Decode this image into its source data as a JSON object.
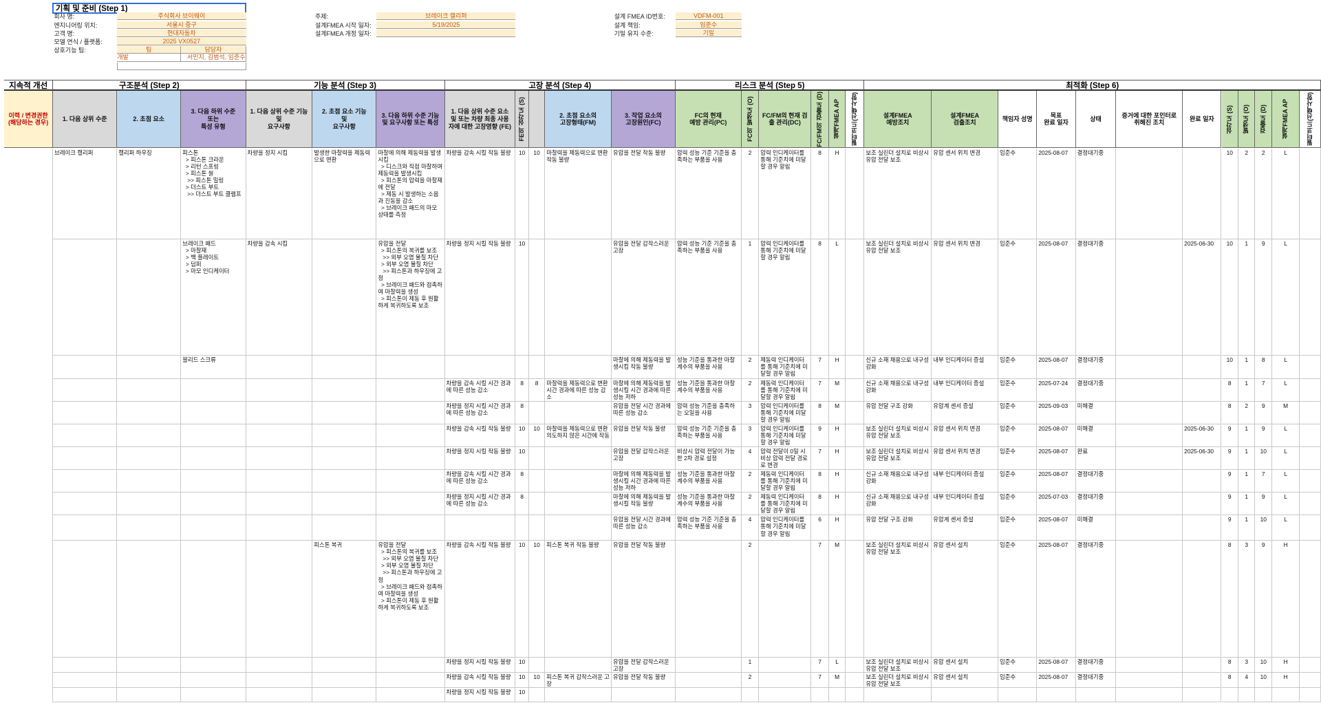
{
  "step1": {
    "title": "기획 및 준비 (Step 1)",
    "left": [
      {
        "label": "회사 명:",
        "value": "주식회사 브이웨이"
      },
      {
        "label": "엔지니어링 위치:",
        "value": "서울시 중구"
      },
      {
        "label": "고객 명:",
        "value": "현대자동차"
      },
      {
        "label": "모델 연식 / 플랫폼:",
        "value": "2025 VX0527"
      }
    ],
    "team": {
      "label": "상호기능 팀:",
      "headers": [
        "팀",
        "담당자"
      ],
      "rows": [
        [
          "개발",
          "서민지, 김범석, 임준수"
        ]
      ]
    },
    "middle": [
      {
        "label": "주제:",
        "value": "브레이크 캘리퍼"
      },
      {
        "label": "설계FMEA 시작 일자:",
        "value": "5/19/2025"
      },
      {
        "label": "설계FMEA 개정 일자:",
        "value": null
      }
    ],
    "right": [
      {
        "label": "설계 FMEA ID번호:",
        "value": "VDFM-001"
      },
      {
        "label": "설계 책임:",
        "value": "임준수"
      },
      {
        "label": "기밀 유지 수준:",
        "value": "기밀"
      }
    ]
  },
  "table": {
    "groups": [
      "지속적 개선",
      "구조분석 (Step 2)",
      "기능 분석 (Step 3)",
      "고장 분석 (Step 4)",
      "리스크 분석 (Step 5)",
      "최적화 (Step 6)"
    ],
    "headers": [
      "이력 / 변경권한\n(해당하는 경우)",
      "1. 다음 상위 수준",
      "2. 초점 요소",
      "3. 다음 하위 수준\n또는\n특성 유형",
      "1. 다음 상위 수준 기능 및\n요구사항",
      "2. 초점 요소 기능\n및\n요구사항",
      "3. 다음 하위 수준 기능\n및 요구사항 또는 특성",
      "1. 다음 상위 수준 요소\n및 또는 차량 최종 사용\n자에 대한 고장영향 (FE)",
      "FE의 심각도 (S)",
      null,
      "2. 초점 요소의\n고장형태(FM)",
      "3. 작업 요소의\n고장원인(FC)",
      "FC의 현재\n예방 관리(PC)",
      "FC의 발생도 (O)",
      "FC/FM의 현재 검\n출 관리(DC)",
      "FC/FM의 검출도 (D)",
      "설계FMEA AP",
      "필터코드(선택사항)",
      "설계FMEA\n예방조치",
      "설계FMEA\n검출조치",
      "책임자 성명",
      "목표\n완료 일자",
      "상태",
      "증거에 대한 포인터로\n취해진 조치",
      "완료 일자",
      "심각도 (S)",
      "발생도 (O)",
      "검출도 (D)",
      "설계FMEA AP",
      "필터코드(선택사항)"
    ],
    "rows": [
      [
        null,
        "브레이크 캘리퍼",
        "캘리퍼 하우징",
        "피스톤\n  > 피스톤 크라운\n  > 리턴 스프링\n  > 피스톤 씰\n   >> 피스톤 밀링\n  > 더스트 부트\n   >> 더스트 부트 클램프",
        "차량을 정지 시킴",
        "발생한 마찰력을 제동력으로 변환",
        "마찰에 의해 제동력을 발생시킴\n  > 디스크와 직접 마찰하여 제동력을 발생시킴\n  > 피스톤의 압력을 마찰재에 전달\n  > 제동 시 발생하는 소음과 진동을 감소\n  > 브레이크 패드의 마모 상태를 측정",
        "차량을 감속 시킬 작동 불량",
        10,
        10,
        "마찰력을 제동력으로 변환 작동 불량",
        "유압을 전달 작동 불량",
        "압력 성능 기준 기준을 충족하는 부품을 사용",
        2,
        "압력 인디케이터를 통해 기준치에 미달할 경우 알림",
        8,
        "H",
        null,
        "보조 실린더 설치로 비상시 유압 전달 보조",
        "유압 센서 위치 변경",
        "임준수",
        "2025-08-07",
        "결정대기중",
        null,
        null,
        10,
        2,
        2,
        "L",
        null
      ],
      [
        null,
        null,
        null,
        "브레이크 패드\n  > 마찰재\n  > 백 플레이트\n  > 덤퍼\n  > 마모 인디케이터",
        "차량을 감속 시킴",
        null,
        "유압을 전달\n  > 피스톤의 복귀를 보조\n   >> 외부 오염 물질 차단\n  > 외부 오염 물질 차단\n   >> 피스톤과 하우징에 고정\n  > 브레이크 패드와 접촉하여 마찰력을 생성\n  > 피스톤이 제동 후 원활하게 복귀하도록 보조",
        "차량을 정지 시킬 작동 불량",
        10,
        null,
        null,
        "유압을 전달 갑작스러운 고장",
        "압력 성능 기준 기준을 충족하는 부품을 사용",
        1,
        "압력 인디케이터를 통해 기준치에 미달할 경우 알림",
        8,
        "L",
        null,
        "보조 실린더 설치로 비상시 유압 전달 보조",
        "유압 센서 위치 변경",
        "임준수",
        "2025-08-07",
        "결정대기중",
        null,
        "2025-06-30",
        10,
        1,
        9,
        "L",
        null
      ],
      [
        null,
        null,
        null,
        "블리드 스크류",
        null,
        null,
        null,
        null,
        null,
        null,
        null,
        "마찰에 의해 제동력을 발생시킴 작동 불량",
        "성능 기준을 통과한 마찰계수의 부품을 사용",
        2,
        "제동력 인디케이터를 통해 기준치에 미달할 경우 알림",
        7,
        "H",
        null,
        "신규 소재 채용으로 내구성 강화",
        "내부 인디케이터 증설",
        "임준수",
        "2025-08-07",
        "결정대기중",
        null,
        null,
        10,
        1,
        8,
        "L",
        null
      ],
      [
        null,
        null,
        null,
        null,
        null,
        null,
        null,
        "차량을 감속 시킬 시간 경과에 따른 성능 감소",
        8,
        8,
        "마찰력을 제동력으로 변환 시간 경과에 따른 성능 감소",
        "마찰에 의해 제동력을 발생시킬 시간 경과에 따른 성능 저하",
        "성능 기준을 통과한 마찰계수의 부품을 사용",
        2,
        "제동력 인디케이터를 통해 기준치에 미달할 경우 알림",
        7,
        "M",
        null,
        "신규 소재 채용으로 내구성 강화",
        "내부 인디케이터 증설",
        "임준수",
        "2025-07-24",
        "결정대기중",
        null,
        null,
        8,
        1,
        7,
        "L",
        null
      ],
      [
        null,
        null,
        null,
        null,
        null,
        null,
        null,
        "차량을 정지 시킬 시간 경과에 따른 성능 감소",
        8,
        null,
        null,
        "유압을 전달 시간 경과에 따른 성능 감소",
        "압력 성능 기준을 충족하는 오일을 사용",
        3,
        "압력 인디케이터를 통해 기준치에 미달할 경우 알림",
        8,
        "M",
        null,
        "유압 전달 구조 강화",
        "유압계 센서 증설",
        "임준수",
        "2025-09-03",
        "미해결",
        null,
        null,
        8,
        2,
        9,
        "M",
        null
      ],
      [
        null,
        null,
        null,
        null,
        null,
        null,
        null,
        "차량을 감속 시킬 작동 불량",
        10,
        10,
        "마찰력을 제동력으로 변환 의도하지 않은 시간에 작동",
        "유압을 전달 작동 불량",
        "압력 성능 기준 기준을 충족하는 부품을 사용",
        3,
        "압력 인디케이터를 통해 기준치에 미달할 경우 알림",
        9,
        "H",
        null,
        "보조 실린더 설치로 비상시 유압 전달 보조",
        "유압 센서 위치 변경",
        "임준수",
        "2025-08-07",
        "미해결",
        null,
        "2025-06-30",
        9,
        1,
        9,
        "L",
        null
      ],
      [
        null,
        null,
        null,
        null,
        null,
        null,
        null,
        "차량을 정지 시킬 작동 불량",
        10,
        null,
        null,
        "유압을 전달 갑작스러운 고장",
        "비상시 압력 전달이 가능한 2차 경로 설정",
        4,
        "압력 전달이 0일 시 비상 압력 전달 경로로 변경",
        7,
        "H",
        null,
        "보조 실린더 설치로 비상시 유압 전달 보조",
        "유압 센서 위치 변경",
        "임준수",
        "2025-08-07",
        "완료",
        null,
        "2025-06-30",
        9,
        1,
        10,
        "L",
        null
      ],
      [
        null,
        null,
        null,
        null,
        null,
        null,
        null,
        "차량을 감속 시킬 시간 경과에 따른 성능 감소",
        8,
        null,
        null,
        "마찰에 의해 제동력을 발생시킬 시간 경과에 따른 성능 저하",
        "성능 기준을 통과한 마찰계수의 부품을 사용",
        2,
        "제동력 인디케이터를 통해 기준치에 미달할 경우 알림",
        8,
        "H",
        null,
        "신규 소재 채용으로 내구성 강화",
        "내부 인디케이터 증설",
        "임준수",
        "2025-08-07",
        "결정대기중",
        null,
        null,
        9,
        1,
        7,
        "L",
        null
      ],
      [
        null,
        null,
        null,
        null,
        null,
        null,
        null,
        "차량을 정지 시킬 시간 경과에 따른 성능 감소",
        8,
        null,
        null,
        "마찰에 의해 제동력을 발생시킬 작동 불량",
        "성능 기준을 통과한 마찰계수의 부품을 사용",
        2,
        "제동력 인디케이터를 통해 기준치에 미달할 경우 알림",
        8,
        "H",
        null,
        "신규 소재 채용으로 내구성 강화",
        "내부 인디케이터 증설",
        "임준수",
        "2025-07-03",
        "결정대기중",
        null,
        null,
        9,
        1,
        9,
        "L",
        null
      ],
      [
        null,
        null,
        null,
        null,
        null,
        null,
        null,
        null,
        null,
        null,
        null,
        "유압을 전달 시간 경과에 따른 성능 감소",
        "압력 성능 기준 기준을 충족하는 부품을 사용",
        4,
        "압력 인디케이터를 통해 기준치에 미달할 경우 알림",
        6,
        "H",
        null,
        "유압 전달 구조 강화",
        "유압계 센서 증설",
        "임준수",
        "2025-08-07",
        "미해결",
        null,
        null,
        9,
        1,
        10,
        "L",
        null
      ],
      [
        null,
        null,
        null,
        null,
        null,
        "피스톤 복귀",
        "유압을 전달\n  > 피스톤의 복귀를 보조\n   >> 외부 오염 물질 차단\n  > 외부 오염 물질 차단\n   >> 피스톤과 하우징에 고정\n  > 브레이크 패드와 접촉하여 마찰력을 생성\n  > 피스톤이 제동 후 원활하게 복귀하도록 보조",
        "차량을 감속 시킬 작동 불량",
        10,
        10,
        "피스톤 복귀 작동 불량",
        "유압을 전달 작동 불량",
        null,
        2,
        null,
        7,
        "M",
        null,
        "보조 실린더 설치로 비상시 유압 전달 보조",
        "유압 센서 설치",
        "임준수",
        "2025-08-07",
        "결정대기중",
        null,
        null,
        8,
        3,
        9,
        "H",
        null
      ],
      [
        null,
        null,
        null,
        null,
        null,
        null,
        null,
        "차량을 정지 시킬 작동 불량",
        10,
        null,
        null,
        "유압을 전달 갑작스러운 고장",
        null,
        1,
        null,
        7,
        "L",
        null,
        "보조 실린더 설치로 비상시 유압 전달 보조",
        "유압 센서 설치",
        "임준수",
        "2025-08-07",
        "결정대기중",
        null,
        null,
        8,
        3,
        10,
        "H",
        null
      ],
      [
        null,
        null,
        null,
        null,
        null,
        null,
        null,
        "차량을 감속 시킬 작동 불량",
        10,
        10,
        "피스톤 복귀 갑작스러운 고장",
        "유압을 전달 작동 불량",
        null,
        2,
        null,
        7,
        "M",
        null,
        "보조 실린더 설치로 비상시 유압 전달 보조",
        "유압 센서 설치",
        "임준수",
        "2025-08-07",
        "결정대기중",
        null,
        null,
        8,
        4,
        10,
        "H",
        null
      ],
      [
        null,
        null,
        null,
        null,
        null,
        null,
        null,
        "차량을 정지 시킬 작동 불량",
        10,
        null,
        null,
        null,
        null,
        null,
        null,
        null,
        null,
        null,
        null,
        null,
        null,
        null,
        null,
        null,
        null,
        null,
        null,
        null,
        null,
        null
      ]
    ]
  }
}
